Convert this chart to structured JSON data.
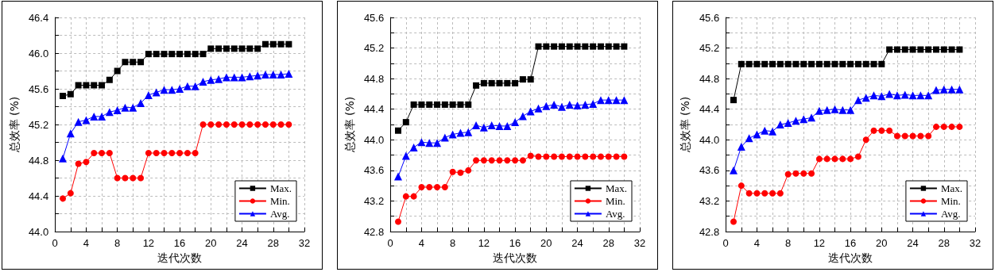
{
  "chart_data": [
    {
      "type": "line",
      "xlabel": "迭代次数",
      "ylabel": "总效率 (%)",
      "x": [
        1,
        2,
        3,
        4,
        5,
        6,
        7,
        8,
        9,
        10,
        11,
        12,
        13,
        14,
        15,
        16,
        17,
        18,
        19,
        20,
        21,
        22,
        23,
        24,
        25,
        26,
        27,
        28,
        29,
        30
      ],
      "xlim": [
        0,
        32
      ],
      "xticks": [
        0,
        {
          "value": 2,
          "label": null
        },
        4,
        {
          "value": 6,
          "label": null
        },
        8,
        {
          "value": 10,
          "label": null
        },
        12,
        {
          "value": 14,
          "label": null
        },
        16,
        {
          "value": 18,
          "label": null
        },
        20,
        {
          "value": 22,
          "label": null
        },
        24,
        {
          "value": 26,
          "label": null
        },
        28,
        {
          "value": 30,
          "label": null
        },
        32
      ],
      "ylim": [
        44.0,
        46.4
      ],
      "yticks": [
        {
          "value": 44.0,
          "label": "44.0"
        },
        {
          "value": 44.2,
          "label": null
        },
        {
          "value": 44.4,
          "label": "44.4"
        },
        {
          "value": 44.6,
          "label": null
        },
        {
          "value": 44.8,
          "label": "44.8"
        },
        {
          "value": 45.0,
          "label": null
        },
        {
          "value": 45.2,
          "label": "45.2"
        },
        {
          "value": 45.4,
          "label": null
        },
        {
          "value": 45.6,
          "label": "45.6"
        },
        {
          "value": 45.8,
          "label": null
        },
        {
          "value": 46.0,
          "label": "46.0"
        },
        {
          "value": 46.2,
          "label": null
        },
        {
          "value": 46.4,
          "label": "46.4"
        }
      ],
      "grid": true,
      "legend": "bottom right",
      "line_style": "solid",
      "series": [
        {
          "name": "Max.",
          "color": "#000000",
          "marker": "square",
          "values": [
            45.52,
            45.54,
            45.64,
            45.64,
            45.64,
            45.64,
            45.7,
            45.8,
            45.9,
            45.9,
            45.9,
            45.99,
            45.99,
            45.99,
            45.99,
            45.99,
            45.99,
            45.99,
            45.99,
            46.05,
            46.05,
            46.05,
            46.05,
            46.05,
            46.05,
            46.05,
            46.1,
            46.1,
            46.1,
            46.1
          ]
        },
        {
          "name": "Min.",
          "color": "#ff0000",
          "marker": "circle",
          "values": [
            44.37,
            44.43,
            44.76,
            44.78,
            44.88,
            44.88,
            44.88,
            44.6,
            44.6,
            44.6,
            44.6,
            44.88,
            44.88,
            44.88,
            44.88,
            44.88,
            44.88,
            44.88,
            45.2,
            45.2,
            45.2,
            45.2,
            45.2,
            45.2,
            45.2,
            45.2,
            45.2,
            45.2,
            45.2,
            45.2
          ]
        },
        {
          "name": "Avg.",
          "color": "#0000ff",
          "marker": "triangle",
          "values": [
            44.82,
            45.1,
            45.23,
            45.25,
            45.29,
            45.29,
            45.34,
            45.36,
            45.39,
            45.39,
            45.44,
            45.53,
            45.56,
            45.59,
            45.59,
            45.6,
            45.63,
            45.63,
            45.68,
            45.7,
            45.71,
            45.73,
            45.73,
            45.73,
            45.74,
            45.75,
            45.76,
            45.76,
            45.76,
            45.77
          ]
        }
      ]
    },
    {
      "type": "line",
      "xlabel": "迭代次数",
      "ylabel": "总效率 (%)",
      "x": [
        1,
        2,
        3,
        4,
        5,
        6,
        7,
        8,
        9,
        10,
        11,
        12,
        13,
        14,
        15,
        16,
        17,
        18,
        19,
        20,
        21,
        22,
        23,
        24,
        25,
        26,
        27,
        28,
        29,
        30
      ],
      "xlim": [
        0,
        32
      ],
      "xticks": [
        0,
        {
          "value": 2,
          "label": null
        },
        4,
        {
          "value": 6,
          "label": null
        },
        8,
        {
          "value": 10,
          "label": null
        },
        12,
        {
          "value": 14,
          "label": null
        },
        16,
        {
          "value": 18,
          "label": null
        },
        20,
        {
          "value": 22,
          "label": null
        },
        24,
        {
          "value": 26,
          "label": null
        },
        28,
        {
          "value": 30,
          "label": null
        },
        32
      ],
      "ylim": [
        42.8,
        45.6
      ],
      "yticks": [
        {
          "value": 42.8,
          "label": "42.8"
        },
        {
          "value": 43.0,
          "label": null
        },
        {
          "value": 43.2,
          "label": "43.2"
        },
        {
          "value": 43.4,
          "label": null
        },
        {
          "value": 43.6,
          "label": "43.6"
        },
        {
          "value": 43.8,
          "label": null
        },
        {
          "value": 44.0,
          "label": "44.0"
        },
        {
          "value": 44.2,
          "label": null
        },
        {
          "value": 44.4,
          "label": "44.4"
        },
        {
          "value": 44.6,
          "label": null
        },
        {
          "value": 44.8,
          "label": "44.8"
        },
        {
          "value": 45.0,
          "label": null
        },
        {
          "value": 45.2,
          "label": "45.2"
        },
        {
          "value": 45.4,
          "label": null
        },
        {
          "value": 45.6,
          "label": "45.6"
        }
      ],
      "grid": true,
      "legend": "bottom right",
      "line_style": "solid",
      "series": [
        {
          "name": "Max.",
          "color": "#000000",
          "marker": "square",
          "values": [
            44.12,
            44.23,
            44.46,
            44.46,
            44.46,
            44.46,
            44.46,
            44.46,
            44.46,
            44.46,
            44.71,
            44.74,
            44.74,
            44.74,
            44.74,
            44.74,
            44.79,
            44.79,
            45.22,
            45.22,
            45.22,
            45.22,
            45.22,
            45.22,
            45.22,
            45.22,
            45.22,
            45.22,
            45.22,
            45.22
          ]
        },
        {
          "name": "Min.",
          "color": "#ff0000",
          "marker": "circle",
          "values": [
            42.93,
            43.26,
            43.26,
            43.38,
            43.38,
            43.38,
            43.38,
            43.58,
            43.57,
            43.6,
            43.73,
            43.73,
            43.73,
            43.73,
            43.73,
            43.73,
            43.73,
            43.79,
            43.78,
            43.78,
            43.78,
            43.78,
            43.78,
            43.78,
            43.78,
            43.78,
            43.78,
            43.78,
            43.78,
            43.78
          ]
        },
        {
          "name": "Avg.",
          "color": "#0000ff",
          "marker": "triangle",
          "values": [
            43.52,
            43.79,
            43.9,
            43.97,
            43.96,
            43.96,
            44.03,
            44.07,
            44.09,
            44.1,
            44.19,
            44.16,
            44.19,
            44.18,
            44.18,
            44.23,
            44.31,
            44.37,
            44.41,
            44.44,
            44.46,
            44.43,
            44.46,
            44.45,
            44.46,
            44.47,
            44.52,
            44.52,
            44.52,
            44.52
          ]
        }
      ]
    },
    {
      "type": "line",
      "xlabel": "迭代次数",
      "ylabel": "总效率 (%)",
      "x": [
        1,
        2,
        3,
        4,
        5,
        6,
        7,
        8,
        9,
        10,
        11,
        12,
        13,
        14,
        15,
        16,
        17,
        18,
        19,
        20,
        21,
        22,
        23,
        24,
        25,
        26,
        27,
        28,
        29,
        30
      ],
      "xlim": [
        0,
        32
      ],
      "xticks": [
        0,
        {
          "value": 2,
          "label": null
        },
        4,
        {
          "value": 6,
          "label": null
        },
        8,
        {
          "value": 10,
          "label": null
        },
        12,
        {
          "value": 14,
          "label": null
        },
        16,
        {
          "value": 18,
          "label": null
        },
        20,
        {
          "value": 22,
          "label": null
        },
        24,
        {
          "value": 26,
          "label": null
        },
        28,
        {
          "value": 30,
          "label": null
        },
        32
      ],
      "ylim": [
        42.8,
        45.6
      ],
      "yticks": [
        {
          "value": 42.8,
          "label": "42.8"
        },
        {
          "value": 43.0,
          "label": null
        },
        {
          "value": 43.2,
          "label": "43.2"
        },
        {
          "value": 43.4,
          "label": null
        },
        {
          "value": 43.6,
          "label": "43.6"
        },
        {
          "value": 43.8,
          "label": null
        },
        {
          "value": 44.0,
          "label": "44.0"
        },
        {
          "value": 44.2,
          "label": null
        },
        {
          "value": 44.4,
          "label": "44.4"
        },
        {
          "value": 44.6,
          "label": null
        },
        {
          "value": 44.8,
          "label": "44.8"
        },
        {
          "value": 45.0,
          "label": null
        },
        {
          "value": 45.2,
          "label": "45.2"
        },
        {
          "value": 45.4,
          "label": null
        },
        {
          "value": 45.6,
          "label": "45.6"
        }
      ],
      "grid": true,
      "legend": "bottom right",
      "line_style": "solid",
      "series": [
        {
          "name": "Max.",
          "color": "#000000",
          "marker": "square",
          "values": [
            44.52,
            44.99,
            44.99,
            44.99,
            44.99,
            44.99,
            44.99,
            44.99,
            44.99,
            44.99,
            44.99,
            44.99,
            44.99,
            44.99,
            44.99,
            44.99,
            44.99,
            44.99,
            44.99,
            44.99,
            45.18,
            45.18,
            45.18,
            45.18,
            45.18,
            45.18,
            45.18,
            45.18,
            45.18,
            45.18
          ]
        },
        {
          "name": "Min.",
          "color": "#ff0000",
          "marker": "circle",
          "values": [
            42.93,
            43.4,
            43.3,
            43.3,
            43.3,
            43.3,
            43.3,
            43.55,
            43.56,
            43.56,
            43.56,
            43.75,
            43.75,
            43.75,
            43.75,
            43.75,
            43.78,
            44.0,
            44.12,
            44.12,
            44.12,
            44.05,
            44.05,
            44.05,
            44.05,
            44.05,
            44.17,
            44.17,
            44.17,
            44.17
          ]
        },
        {
          "name": "Avg.",
          "color": "#0000ff",
          "marker": "triangle",
          "values": [
            43.6,
            43.91,
            44.02,
            44.07,
            44.12,
            44.11,
            44.2,
            44.22,
            44.25,
            44.27,
            44.29,
            44.38,
            44.39,
            44.4,
            44.39,
            44.39,
            44.52,
            44.55,
            44.58,
            44.57,
            44.6,
            44.58,
            44.59,
            44.58,
            44.58,
            44.58,
            44.65,
            44.66,
            44.66,
            44.66
          ]
        }
      ]
    }
  ]
}
